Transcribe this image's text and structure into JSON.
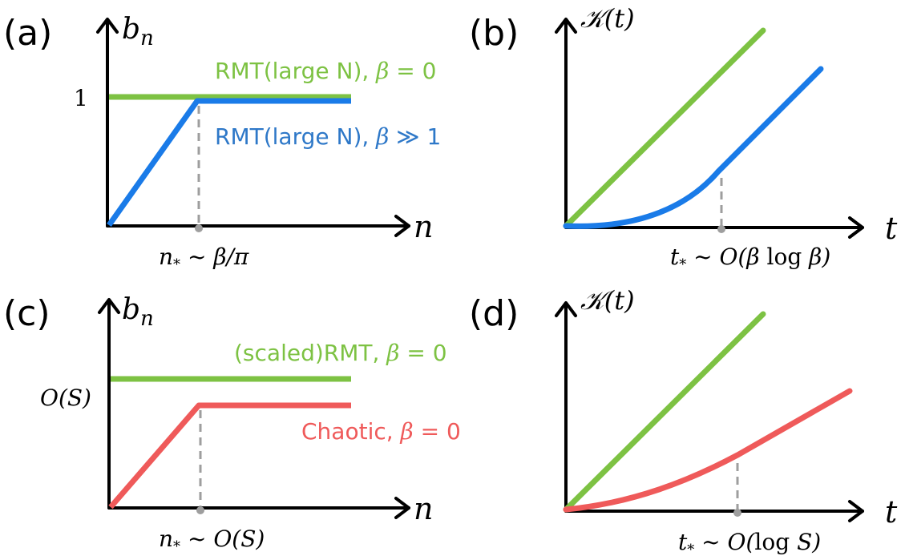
{
  "colors": {
    "green": "#7dc243",
    "blue": "#1a7be8",
    "red": "#ef5a5a",
    "guide": "#9e9e9e",
    "label_blue": "#2e78c8"
  },
  "panels": {
    "a": {
      "label": "(a)",
      "y_axis_label": "b_n",
      "x_axis_label": "n",
      "y_tick": "1",
      "x_marker": "n_* ~ β/π",
      "curves": [
        {
          "name": "RMT(large N), β = 0",
          "shape": "constant"
        },
        {
          "name": "RMT(large N), β ≫ 1",
          "shape": "linear-then-constant"
        }
      ]
    },
    "b": {
      "label": "(b)",
      "y_axis_label": "𝒦(t)",
      "x_axis_label": "t",
      "x_marker": "t_* ~ O(β log β)"
    },
    "c": {
      "label": "(c)",
      "y_axis_label": "b_n",
      "x_axis_label": "n",
      "y_tick": "O(S)",
      "x_marker": "n_* ~ O(S)",
      "curves": [
        {
          "name": "(scaled)RMT, β = 0",
          "shape": "constant"
        },
        {
          "name": "Chaotic, β = 0",
          "shape": "linear-then-constant"
        }
      ]
    },
    "d": {
      "label": "(d)",
      "y_axis_label": "𝒦(t)",
      "x_axis_label": "t",
      "x_marker": "t_* ~ O(log S)"
    }
  }
}
